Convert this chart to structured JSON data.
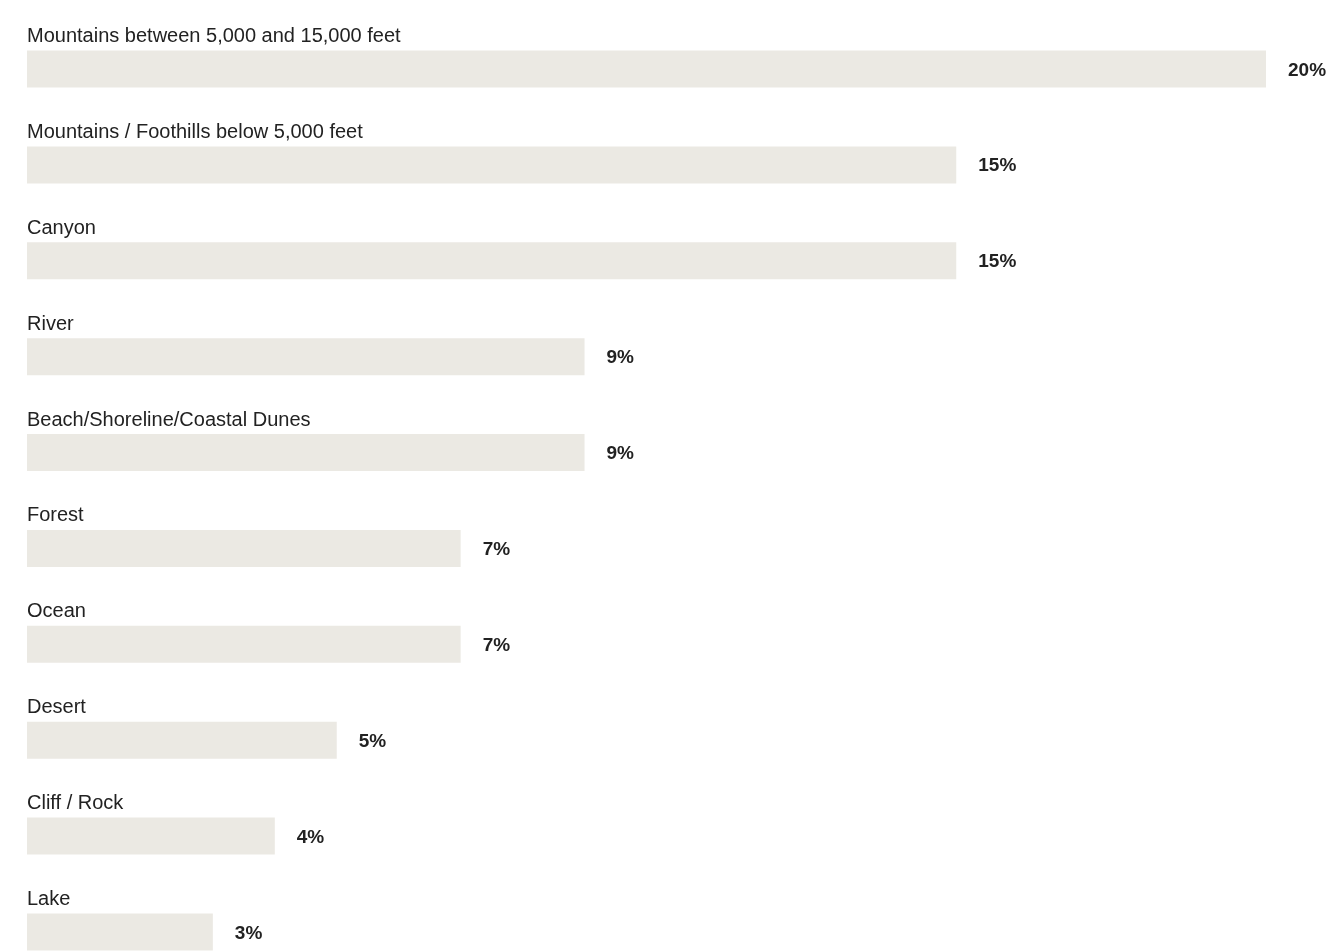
{
  "chart_data": {
    "type": "bar",
    "orientation": "horizontal",
    "color": "#ebe9e3",
    "categories": [
      "Mountains between 5,000 and 15,000 feet",
      "Mountains / Foothills below 5,000 feet",
      "Canyon",
      "River",
      "Beach/Shoreline/Coastal Dunes",
      "Forest",
      "Ocean",
      "Desert",
      "Cliff / Rock",
      "Lake"
    ],
    "values": [
      20,
      15,
      15,
      9,
      9,
      7,
      7,
      5,
      4,
      3
    ],
    "value_labels": [
      "20%",
      "15%",
      "15%",
      "9%",
      "9%",
      "7%",
      "7%",
      "5%",
      "4%",
      "3%"
    ],
    "xlim": [
      0,
      20
    ]
  }
}
